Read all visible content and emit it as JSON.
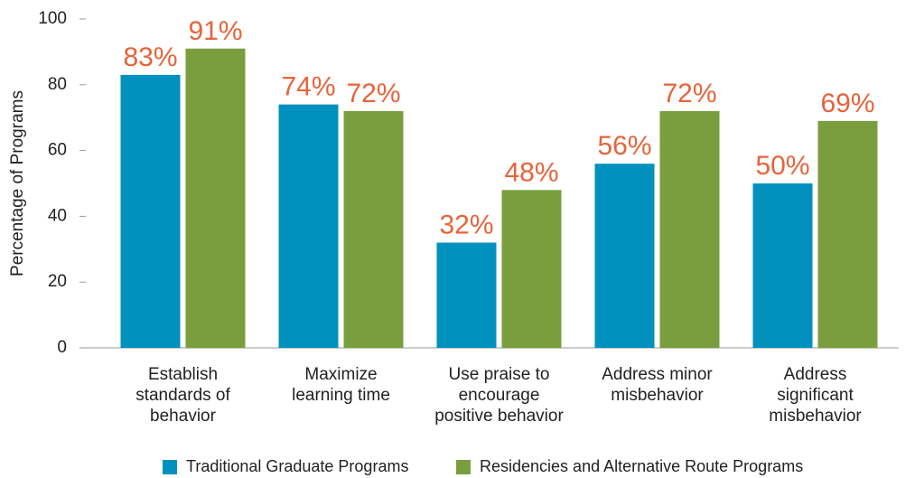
{
  "chart_data": {
    "type": "bar",
    "ylabel": "Percentage of Programs",
    "categories": [
      "Establish\nstandards of\nbehavior",
      "Maximize\nlearning time",
      "Use praise to\nencourage\npositive behavior",
      "Address minor\nmisbehavior",
      "Address\nsignificant\nmisbehavior"
    ],
    "series": [
      {
        "name": "Traditional Graduate Programs",
        "color": "#0091bf",
        "values": [
          83,
          74,
          32,
          56,
          50
        ],
        "value_labels": [
          "83%",
          "74%",
          "32%",
          "56%",
          "50%"
        ]
      },
      {
        "name": "Residencies and Alternative Route Programs",
        "color": "#7a9e3e",
        "values": [
          91,
          72,
          48,
          72,
          69
        ],
        "value_labels": [
          "91%",
          "72%",
          "48%",
          "72%",
          "69%"
        ]
      }
    ],
    "ylim": [
      0,
      100
    ],
    "yticks": [
      0,
      20,
      40,
      60,
      80,
      100
    ],
    "label_color": "#e8633a"
  }
}
